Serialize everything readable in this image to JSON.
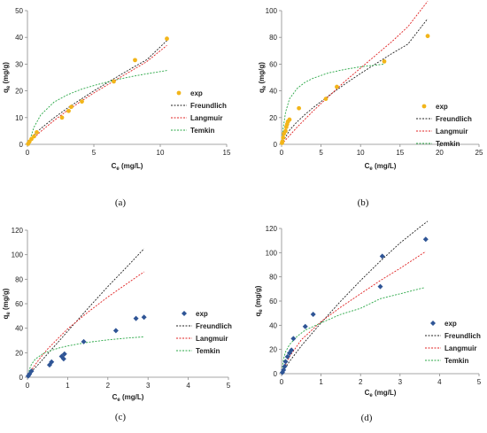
{
  "figure": {
    "colors": {
      "exp_a": "#f2b51a",
      "exp_b": "#f2b51a",
      "exp_c": "#2f5596",
      "exp_d": "#2f5596",
      "freundlich": "#222222",
      "langmuir": "#e02020",
      "temkin": "#28a745"
    }
  },
  "chart_data": [
    {
      "panel": "(a)",
      "type": "scatter",
      "xlabel": "Ce (mg/L)",
      "ylabel": "qe (mg/g)",
      "xlim": [
        0,
        15
      ],
      "ylim": [
        0,
        50
      ],
      "xticks": [
        0,
        5,
        10,
        15
      ],
      "yticks": [
        0,
        10,
        20,
        30,
        40,
        50
      ],
      "legend_position": "right",
      "exp_marker": "circle",
      "series": [
        {
          "name": "exp",
          "kind": "points",
          "x": [
            0.05,
            0.15,
            0.3,
            0.5,
            0.7,
            2.6,
            3.1,
            3.3,
            4.1,
            6.5,
            8.1,
            10.5
          ],
          "y": [
            0.2,
            1.0,
            2.0,
            3.0,
            4.5,
            10.0,
            12.5,
            14.0,
            16.0,
            23.5,
            31.5,
            39.5
          ]
        },
        {
          "name": "Freundlich",
          "kind": "line",
          "dash": "2,1.5",
          "x": [
            0,
            0.5,
            1,
            2,
            3,
            4,
            5,
            6,
            7,
            8,
            9,
            10.5
          ],
          "y": [
            0,
            3.5,
            5.9,
            9.9,
            13.5,
            16.8,
            20.0,
            23.0,
            26.0,
            28.9,
            31.7,
            38.8
          ]
        },
        {
          "name": "Langmuir",
          "kind": "line",
          "dash": "2,1.5",
          "x": [
            0,
            0.5,
            1,
            2,
            3,
            4,
            5,
            6,
            7,
            8,
            9,
            10.5
          ],
          "y": [
            0,
            2.5,
            4.8,
            8.9,
            12.6,
            16.0,
            19.2,
            22.2,
            25.1,
            28.0,
            31.0,
            37.0
          ]
        },
        {
          "name": "Temkin",
          "kind": "line",
          "dash": "2,1.5",
          "x": [
            0.2,
            0.5,
            1,
            2,
            3,
            4,
            5,
            6,
            7,
            8,
            9,
            10.5
          ],
          "y": [
            2.0,
            6.5,
            11.0,
            15.8,
            18.5,
            20.5,
            22.0,
            23.3,
            24.5,
            25.5,
            26.4,
            27.6
          ]
        }
      ]
    },
    {
      "panel": "(b)",
      "type": "scatter",
      "xlabel": "Ce (mg/L)",
      "ylabel": "qe (mg/g)",
      "xlim": [
        0,
        25
      ],
      "ylim": [
        0,
        100
      ],
      "xticks": [
        0,
        5,
        10,
        15,
        20,
        25
      ],
      "yticks": [
        0,
        20,
        40,
        60,
        80,
        100
      ],
      "legend_position": "right",
      "exp_marker": "circle",
      "series": [
        {
          "name": "exp",
          "kind": "points",
          "x": [
            0.05,
            0.1,
            0.2,
            0.3,
            0.5,
            0.6,
            0.7,
            0.8,
            1.0,
            2.2,
            5.6,
            7.0,
            13.0,
            18.5
          ],
          "y": [
            1.0,
            2.0,
            5.0,
            8.0,
            10.0,
            13.0,
            15.0,
            17.0,
            18.5,
            27.0,
            34.0,
            43.0,
            62.0,
            81.0
          ]
        },
        {
          "name": "Freundlich",
          "kind": "line",
          "dash": "2,1.5",
          "x": [
            0,
            1,
            2,
            3,
            4,
            6,
            8,
            10,
            12,
            14,
            16,
            18.5
          ],
          "y": [
            0,
            10.5,
            17.0,
            22.5,
            27.5,
            36.5,
            45.0,
            53.0,
            60.5,
            68.0,
            75.0,
            94.0
          ]
        },
        {
          "name": "Langmuir",
          "kind": "line",
          "dash": "2,1.5",
          "x": [
            0,
            1,
            2,
            3,
            4,
            6,
            8,
            10,
            12,
            14,
            16,
            18.5
          ],
          "y": [
            0,
            6.5,
            13.0,
            19.0,
            25.0,
            36.0,
            47.0,
            57.0,
            67.0,
            77.0,
            88.0,
            107.0
          ]
        },
        {
          "name": "Temkin",
          "kind": "line",
          "dash": "2,1.5",
          "x": [
            0.05,
            0.2,
            0.5,
            1,
            2,
            3,
            4,
            6,
            8,
            10,
            13
          ],
          "y": [
            2.0,
            12.0,
            24.0,
            34.0,
            42.0,
            46.5,
            49.5,
            53.5,
            56.0,
            58.0,
            60.0
          ]
        }
      ]
    },
    {
      "panel": "(c)",
      "type": "scatter",
      "xlabel": "Ce (mg/L)",
      "ylabel": "qe (mg/g)",
      "xlim": [
        0,
        5
      ],
      "ylim": [
        0,
        120
      ],
      "xticks": [
        0,
        1,
        2,
        3,
        4,
        5
      ],
      "yticks": [
        0,
        20,
        40,
        60,
        80,
        100,
        120
      ],
      "legend_position": "right",
      "exp_marker": "diamond",
      "series": [
        {
          "name": "exp",
          "kind": "points",
          "x": [
            0.02,
            0.05,
            0.1,
            0.55,
            0.6,
            0.85,
            0.9,
            0.92,
            1.4,
            2.2,
            2.7,
            2.9
          ],
          "y": [
            1.0,
            2.5,
            5.0,
            10.0,
            12.5,
            17.0,
            15.0,
            19.0,
            29.0,
            38.0,
            48.0,
            49.0
          ]
        },
        {
          "name": "Freundlich",
          "kind": "line",
          "dash": "2,1.5",
          "x": [
            0,
            0.1,
            0.3,
            0.5,
            0.8,
            1.0,
            1.5,
            2.0,
            2.5,
            2.9
          ],
          "y": [
            0,
            4.5,
            11.5,
            19.0,
            30.0,
            37.5,
            56.0,
            74.0,
            91.0,
            105.0
          ]
        },
        {
          "name": "Langmuir",
          "kind": "line",
          "dash": "2,1.5",
          "x": [
            0,
            0.1,
            0.3,
            0.5,
            0.8,
            1.0,
            1.5,
            2.0,
            2.5,
            2.9
          ],
          "y": [
            0,
            6.0,
            15.0,
            23.0,
            33.0,
            39.5,
            53.0,
            65.5,
            77.0,
            86.0
          ]
        },
        {
          "name": "Temkin",
          "kind": "line",
          "dash": "2,1.5",
          "x": [
            0.02,
            0.05,
            0.1,
            0.2,
            0.4,
            0.6,
            0.8,
            1.0,
            1.5,
            2.0,
            2.5,
            2.9
          ],
          "y": [
            2.0,
            6.5,
            10.5,
            15.0,
            19.5,
            22.0,
            24.0,
            25.5,
            28.5,
            30.5,
            32.0,
            33.0
          ]
        }
      ]
    },
    {
      "panel": "(d)",
      "type": "scatter",
      "xlabel": "Ce (mg/L)",
      "ylabel": "qe (mg/g)",
      "xlim": [
        0,
        5
      ],
      "ylim": [
        0,
        120
      ],
      "xticks": [
        0,
        1,
        2,
        3,
        4,
        5
      ],
      "yticks": [
        0,
        20,
        40,
        60,
        80,
        100,
        120
      ],
      "legend_position": "right",
      "exp_marker": "diamond",
      "series": [
        {
          "name": "exp",
          "kind": "points",
          "x": [
            0.02,
            0.05,
            0.08,
            0.1,
            0.15,
            0.2,
            0.25,
            0.3,
            0.6,
            0.8,
            2.5,
            2.55,
            3.65
          ],
          "y": [
            1.0,
            3.0,
            6.0,
            10.0,
            14.0,
            17.0,
            19.5,
            29.0,
            39.0,
            49.0,
            72.0,
            97.0,
            111.0
          ]
        },
        {
          "name": "Freundlich",
          "kind": "line",
          "dash": "2,1.5",
          "x": [
            0,
            0.2,
            0.5,
            1.0,
            1.5,
            2.0,
            2.5,
            3.0,
            3.5,
            3.7
          ],
          "y": [
            0,
            10.0,
            23.0,
            42.0,
            60.0,
            77.0,
            93.0,
            108.0,
            121.0,
            126.0
          ]
        },
        {
          "name": "Langmuir",
          "kind": "line",
          "dash": "2,1.5",
          "x": [
            0,
            0.2,
            0.5,
            1.0,
            1.5,
            2.0,
            2.5,
            3.0,
            3.65
          ],
          "y": [
            0,
            14.0,
            28.0,
            43.0,
            55.0,
            66.0,
            77.0,
            87.0,
            101.0
          ]
        },
        {
          "name": "Temkin",
          "kind": "line",
          "dash": "2,1.5",
          "x": [
            0.02,
            0.05,
            0.1,
            0.2,
            0.4,
            0.6,
            1.0,
            1.5,
            2.0,
            2.5,
            3.0,
            3.6
          ],
          "y": [
            5.0,
            12.0,
            18.0,
            24.0,
            31.0,
            36.0,
            42.0,
            49.0,
            54.0,
            62.0,
            66.0,
            71.0
          ]
        }
      ]
    }
  ]
}
